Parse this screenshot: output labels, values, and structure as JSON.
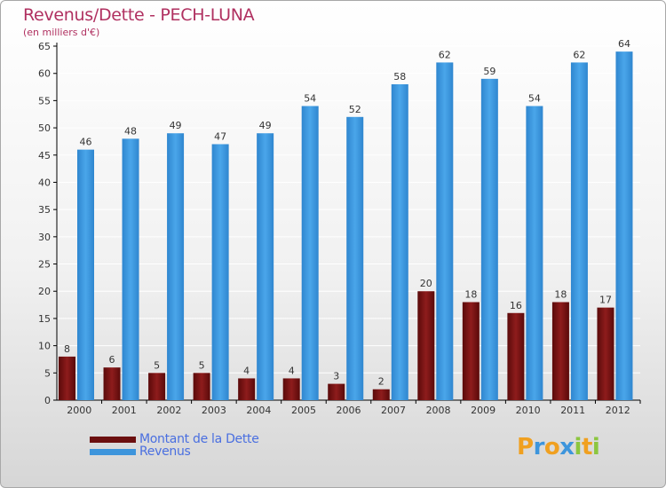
{
  "title": "Revenus/Dette - PECH-LUNA",
  "subtitle": "(en milliers d'€)",
  "colors": {
    "debt": "#7a1010",
    "revenue": "#3d95dc",
    "axis": "#000000",
    "grid": "#ffffff",
    "legend_text": "#4a6fe0",
    "title": "#b03060"
  },
  "legend": [
    {
      "label": "Montant de la Dette",
      "color": "#6b0f0f"
    },
    {
      "label": "Revenus",
      "color": "#3d95dc"
    }
  ],
  "logo": {
    "letters": [
      "P",
      "r",
      "o",
      "x",
      "i",
      "t",
      "i"
    ],
    "colors": [
      "#f0a020",
      "#3d95dc",
      "#f0a020",
      "#3d95dc",
      "#8cc63f",
      "#f0a020",
      "#8cc63f"
    ]
  },
  "chart_data": {
    "type": "bar",
    "categories": [
      "2000",
      "2001",
      "2002",
      "2003",
      "2004",
      "2005",
      "2006",
      "2007",
      "2008",
      "2009",
      "2010",
      "2011",
      "2012"
    ],
    "series": [
      {
        "name": "Montant de la Dette",
        "values": [
          8,
          6,
          5,
          5,
          4,
          4,
          3,
          2,
          20,
          18,
          16,
          18,
          17
        ]
      },
      {
        "name": "Revenus",
        "values": [
          46,
          48,
          49,
          47,
          49,
          54,
          52,
          58,
          62,
          59,
          54,
          62,
          64
        ]
      }
    ],
    "ylim": [
      0,
      65
    ],
    "yticks": [
      0,
      5,
      10,
      15,
      20,
      25,
      30,
      35,
      40,
      45,
      50,
      55,
      60,
      65
    ],
    "grid": true,
    "data_labels": true,
    "legend_position": "bottom-left"
  }
}
